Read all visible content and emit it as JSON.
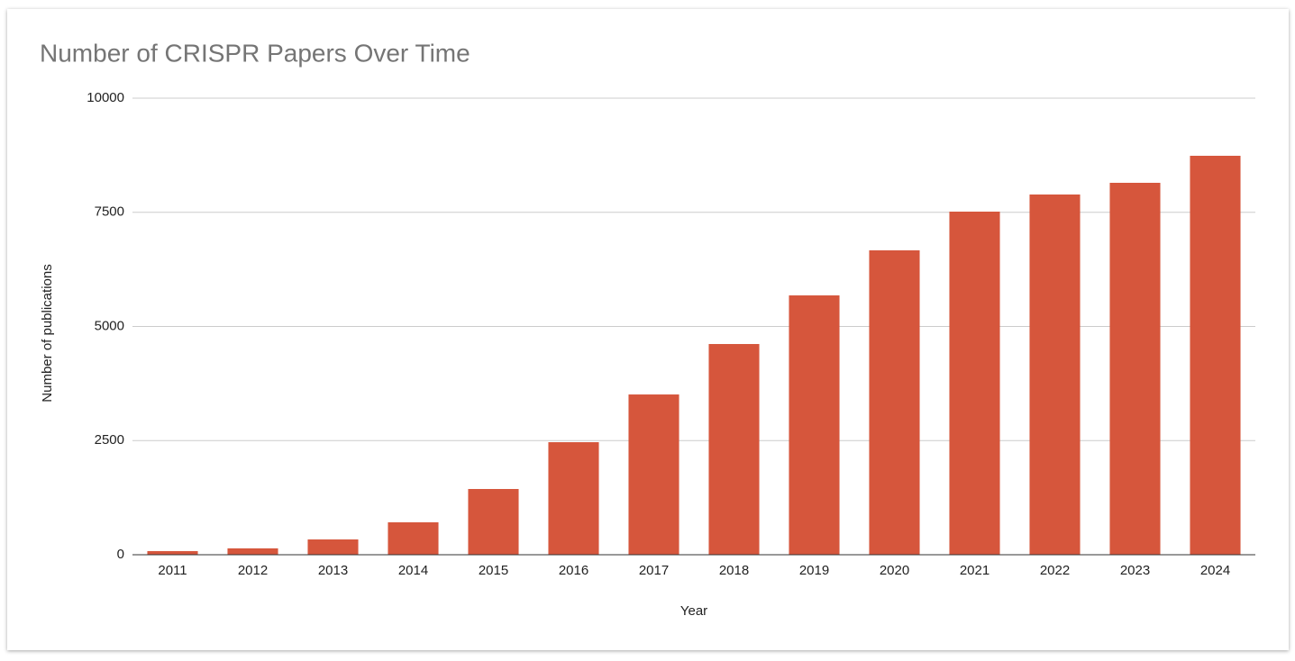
{
  "chart_data": {
    "type": "bar",
    "title": "Number of CRISPR Papers Over Time",
    "x_label": "Year",
    "y_label": "Number of publications",
    "categories": [
      "2011",
      "2012",
      "2013",
      "2014",
      "2015",
      "2016",
      "2017",
      "2018",
      "2019",
      "2020",
      "2021",
      "2022",
      "2023",
      "2024"
    ],
    "values": [
      80,
      140,
      335,
      710,
      1440,
      2465,
      3510,
      4615,
      5680,
      6667,
      7515,
      7890,
      8146,
      8738
    ],
    "color": "#d6563c",
    "ylim": [
      0,
      10000
    ],
    "yticks": [
      0,
      2500,
      5000,
      7500,
      10000
    ],
    "grid": true
  }
}
